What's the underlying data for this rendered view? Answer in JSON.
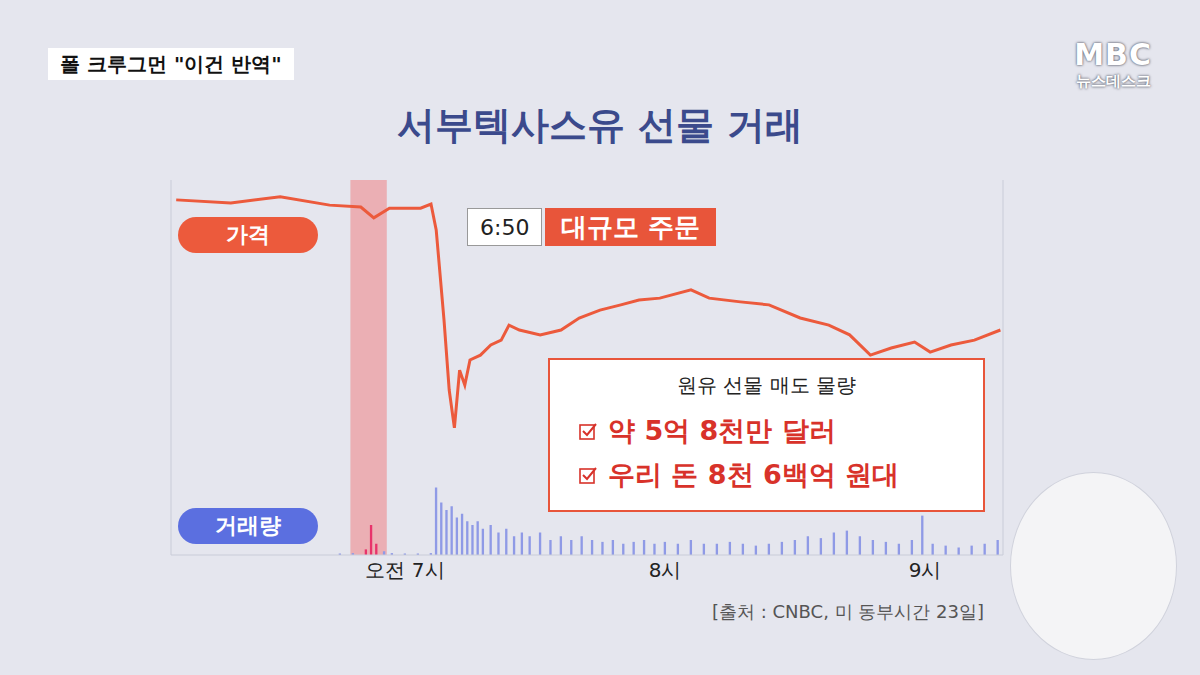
{
  "header": {
    "banner": "폴 크루그먼 \"이건 반역\"",
    "logo": "MBC",
    "logo_sub": "뉴스데스크"
  },
  "chart_data": {
    "type": "line",
    "title": "서부텍사스유 선물 거래",
    "xlim": [
      6.1,
      9.3
    ],
    "xticks": [
      {
        "value": 7,
        "label": "오전 7시"
      },
      {
        "value": 8,
        "label": "8시"
      },
      {
        "value": 9,
        "label": "9시"
      }
    ],
    "ylim": [
      0,
      100
    ],
    "y2lim": [
      0,
      100
    ],
    "tick_labels": "x",
    "grid": false,
    "series": [
      {
        "name": "가격",
        "type": "line",
        "color": "#ec5a3c",
        "x": [
          6.12,
          6.33,
          6.52,
          6.71,
          6.83,
          6.88,
          6.94,
          7.06,
          7.1,
          7.12,
          7.15,
          7.17,
          7.19,
          7.21,
          7.23,
          7.25,
          7.29,
          7.33,
          7.37,
          7.4,
          7.44,
          7.52,
          7.6,
          7.67,
          7.75,
          7.83,
          7.9,
          7.98,
          8.1,
          8.17,
          8.29,
          8.4,
          8.52,
          8.63,
          8.71,
          8.79,
          8.87,
          8.96,
          9.02,
          9.1,
          9.19,
          9.29
        ],
        "values": [
          94.7,
          93.9,
          95.5,
          93.3,
          92.8,
          89.9,
          92.5,
          92.5,
          93.6,
          86.7,
          62.7,
          44,
          33.9,
          49.3,
          45.3,
          52,
          53.3,
          56,
          57.3,
          61.3,
          60,
          58.7,
          60,
          63.2,
          65.3,
          66.7,
          68,
          68.5,
          70.7,
          68.5,
          67.5,
          66.7,
          63.2,
          61.3,
          58.7,
          53.3,
          55.2,
          56.8,
          54.1,
          56,
          57.3,
          60
        ]
      },
      {
        "name": "거래량",
        "type": "bar",
        "axis": "y2",
        "color": "#8f9ae6",
        "x": [
          6.75,
          6.8,
          6.85,
          6.87,
          6.89,
          6.92,
          6.95,
          7.0,
          7.05,
          7.1,
          7.12,
          7.14,
          7.16,
          7.18,
          7.2,
          7.22,
          7.24,
          7.26,
          7.28,
          7.3,
          7.33,
          7.36,
          7.39,
          7.42,
          7.45,
          7.48,
          7.52,
          7.56,
          7.6,
          7.64,
          7.68,
          7.72,
          7.76,
          7.8,
          7.84,
          7.88,
          7.92,
          7.96,
          8.0,
          8.05,
          8.1,
          8.15,
          8.2,
          8.25,
          8.3,
          8.35,
          8.4,
          8.45,
          8.5,
          8.55,
          8.6,
          8.65,
          8.7,
          8.75,
          8.8,
          8.85,
          8.9,
          8.95,
          8.99,
          9.03,
          9.08,
          9.13,
          9.18,
          9.23,
          9.28
        ],
        "values": [
          0.4,
          0.5,
          1.5,
          8,
          3,
          1,
          0.5,
          0.4,
          0.4,
          0.5,
          18,
          14,
          12,
          13,
          10,
          11,
          9,
          8,
          9,
          7,
          8,
          6,
          7,
          5,
          6,
          5,
          6,
          4,
          5,
          4,
          5,
          4,
          3.5,
          4,
          3,
          3.5,
          4,
          3,
          3.5,
          3,
          4,
          3,
          3,
          3.5,
          3,
          2.5,
          3,
          3.5,
          4,
          5,
          4.5,
          6,
          6.5,
          5,
          4,
          3.5,
          3,
          4,
          10.5,
          3,
          2.5,
          2,
          2.5,
          3,
          4
        ],
        "colors": [
          "#8f9ae6",
          "#8f9ae6",
          "#e8336b",
          "#e8336b",
          "#e8336b",
          "#8f9ae6",
          "#8f9ae6",
          "#8f9ae6",
          "#8f9ae6",
          "#8f9ae6",
          "#8f9ae6",
          "#8f9ae6",
          "#8f9ae6",
          "#8f9ae6",
          "#8f9ae6",
          "#8f9ae6",
          "#8f9ae6",
          "#8f9ae6",
          "#8f9ae6",
          "#8f9ae6",
          "#8f9ae6",
          "#8f9ae6",
          "#8f9ae6",
          "#8f9ae6",
          "#8f9ae6",
          "#8f9ae6",
          "#8f9ae6",
          "#8f9ae6",
          "#8f9ae6",
          "#8f9ae6",
          "#8f9ae6",
          "#8f9ae6",
          "#8f9ae6",
          "#8f9ae6",
          "#8f9ae6",
          "#8f9ae6",
          "#8f9ae6",
          "#8f9ae6",
          "#8f9ae6",
          "#8f9ae6",
          "#8f9ae6",
          "#8f9ae6",
          "#8f9ae6",
          "#8f9ae6",
          "#8f9ae6",
          "#8f9ae6",
          "#8f9ae6",
          "#8f9ae6",
          "#8f9ae6",
          "#8f9ae6",
          "#8f9ae6",
          "#8f9ae6",
          "#8f9ae6",
          "#8f9ae6",
          "#8f9ae6",
          "#8f9ae6",
          "#8f9ae6",
          "#8f9ae6",
          "#8f9ae6",
          "#8f9ae6",
          "#8f9ae6",
          "#8f9ae6",
          "#8f9ae6",
          "#8f9ae6",
          "#8f9ae6"
        ]
      }
    ],
    "highlight": {
      "x": [
        6.79,
        6.93
      ],
      "color": "#f26d6d"
    },
    "annotations": [
      {
        "time": "6:50",
        "text": "대규모 주문"
      }
    ],
    "info_box": {
      "title": "원유 선물 매도 물량",
      "items": [
        "약 5억 8천만 달러",
        "우리 돈 8천 6백억 원대"
      ]
    },
    "source": "[출처 : CNBC, 미 동부시간 23일]"
  }
}
